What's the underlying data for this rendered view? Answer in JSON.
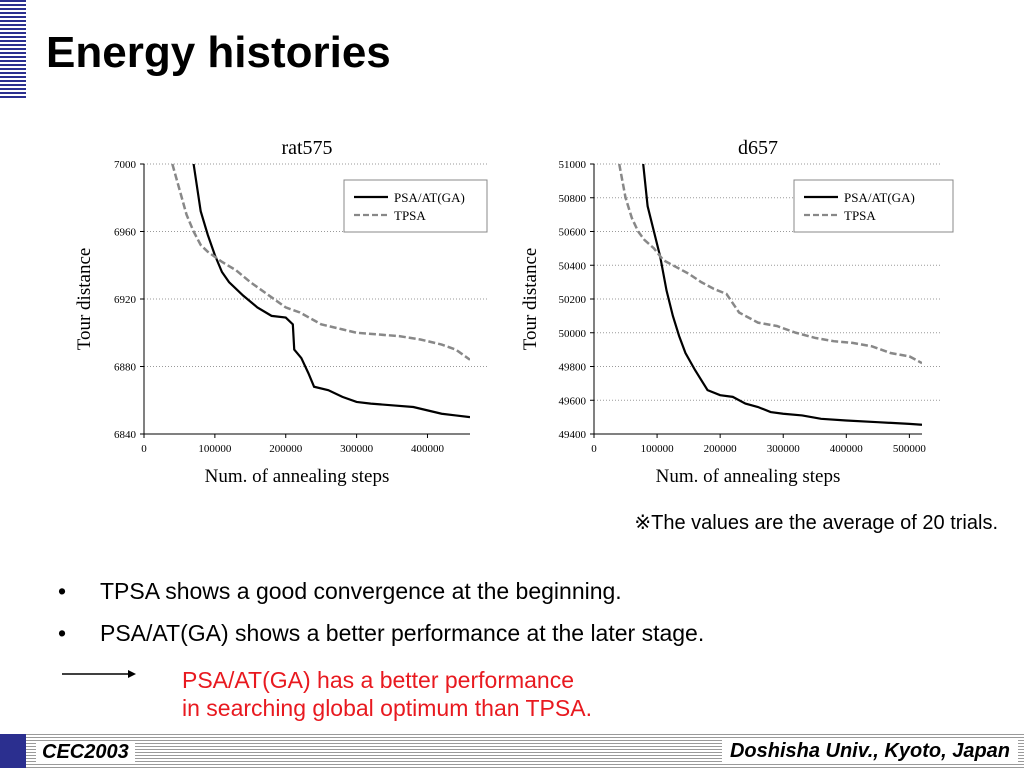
{
  "title": "Energy histories",
  "chart_data": [
    {
      "type": "line",
      "title": "rat575",
      "xlabel": "Num. of annealing steps",
      "ylabel": "Tour distance",
      "xlim": [
        0,
        460000
      ],
      "ylim": [
        6840,
        7000
      ],
      "xticks": [
        0,
        100000,
        200000,
        300000,
        400000
      ],
      "yticks": [
        6840,
        6880,
        6920,
        6960,
        7000
      ],
      "grid": "horizontal dotted",
      "legend": "top-right",
      "series": [
        {
          "name": "PSA/AT(GA)",
          "style": "solid",
          "color": "#000000",
          "x": [
            70000,
            80000,
            90000,
            100000,
            110000,
            120000,
            140000,
            160000,
            180000,
            200000,
            210000,
            212000,
            222000,
            232000,
            240000,
            260000,
            280000,
            300000,
            320000,
            350000,
            380000,
            400000,
            420000,
            440000,
            460000
          ],
          "y": [
            7000,
            6972,
            6958,
            6946,
            6936,
            6930,
            6922,
            6915,
            6910,
            6909,
            6905,
            6890,
            6885,
            6876,
            6868,
            6866,
            6862,
            6859,
            6858,
            6857,
            6856,
            6854,
            6852,
            6851,
            6850
          ]
        },
        {
          "name": "TPSA",
          "style": "dashed",
          "color": "#888888",
          "x": [
            40000,
            50000,
            60000,
            70000,
            80000,
            90000,
            110000,
            130000,
            150000,
            180000,
            200000,
            220000,
            250000,
            280000,
            300000,
            330000,
            360000,
            390000,
            420000,
            440000,
            460000
          ],
          "y": [
            7000,
            6985,
            6970,
            6960,
            6952,
            6948,
            6942,
            6937,
            6930,
            6921,
            6915,
            6912,
            6905,
            6902,
            6900,
            6899,
            6898,
            6896,
            6893,
            6890,
            6884
          ]
        }
      ]
    },
    {
      "type": "line",
      "title": "d657",
      "xlabel": "Num. of annealing steps",
      "ylabel": "Tour distance",
      "xlim": [
        0,
        520000
      ],
      "ylim": [
        49400,
        51000
      ],
      "xticks": [
        0,
        100000,
        200000,
        300000,
        400000,
        500000
      ],
      "yticks": [
        49400,
        49600,
        49800,
        50000,
        50200,
        50400,
        50600,
        50800,
        51000
      ],
      "grid": "horizontal dotted",
      "legend": "top-right",
      "series": [
        {
          "name": "PSA/AT(GA)",
          "style": "solid",
          "color": "#000000",
          "x": [
            78000,
            85000,
            95000,
            105000,
            115000,
            125000,
            135000,
            145000,
            160000,
            180000,
            200000,
            220000,
            240000,
            260000,
            280000,
            300000,
            330000,
            360000,
            400000,
            450000,
            500000,
            520000
          ],
          "y": [
            51000,
            50750,
            50600,
            50450,
            50250,
            50100,
            49980,
            49880,
            49780,
            49660,
            49630,
            49620,
            49580,
            49560,
            49530,
            49520,
            49510,
            49490,
            49480,
            49470,
            49460,
            49455
          ]
        },
        {
          "name": "TPSA",
          "style": "dashed",
          "color": "#888888",
          "x": [
            40000,
            50000,
            60000,
            70000,
            80000,
            95000,
            110000,
            130000,
            150000,
            170000,
            190000,
            210000,
            230000,
            260000,
            290000,
            320000,
            350000,
            380000,
            410000,
            440000,
            470000,
            500000,
            520000
          ],
          "y": [
            51000,
            50800,
            50680,
            50600,
            50550,
            50500,
            50430,
            50390,
            50350,
            50300,
            50260,
            50230,
            50120,
            50060,
            50040,
            50000,
            49970,
            49950,
            49940,
            49920,
            49880,
            49860,
            49820
          ]
        }
      ]
    }
  ],
  "footnote": "※The values are the average of 20 trials.",
  "bullets": [
    {
      "marker": "•",
      "text": "TPSA shows a good convergence at the beginning."
    },
    {
      "marker": "•",
      "text": "PSA/AT(GA) shows a better performance at the later stage."
    }
  ],
  "conclusion": {
    "line1": "PSA/AT(GA) has a better performance",
    "line2": "in searching global optimum than TPSA."
  },
  "footer": {
    "left": "CEC2003",
    "right": "Doshisha Univ., Kyoto, Japan"
  },
  "colors": {
    "accent_blue": "#2b2f8f",
    "conclusion_red": "#e8191f"
  }
}
